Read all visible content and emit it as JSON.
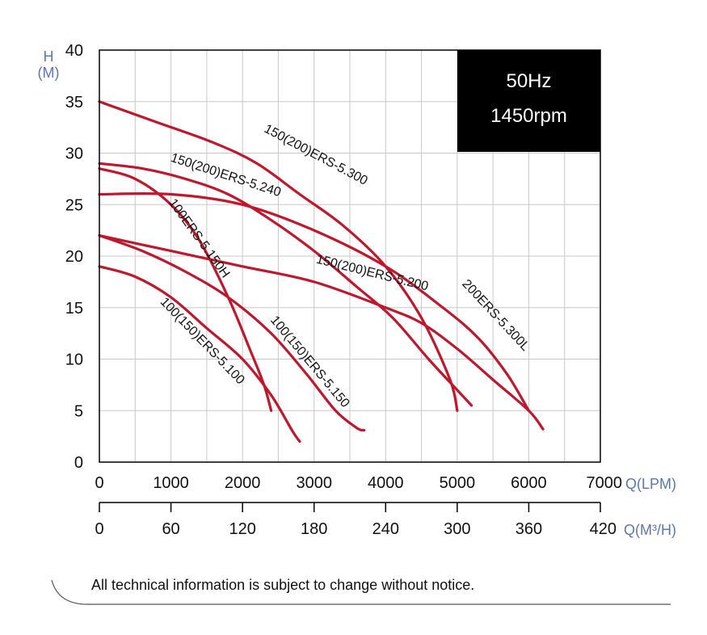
{
  "chart_data": {
    "type": "line",
    "y_axis": {
      "label": "H",
      "unit": "(M)",
      "min": 0,
      "max": 40,
      "ticks": [
        "0",
        "5",
        "10",
        "15",
        "20",
        "25",
        "30",
        "35",
        "40"
      ]
    },
    "x_axis": {
      "label": "Q(LPM)",
      "min": 0,
      "max": 7000,
      "ticks": [
        "0",
        "1000",
        "2000",
        "3000",
        "4000",
        "5000",
        "6000",
        "7000"
      ]
    },
    "x_axis2": {
      "label": "Q(M³/H)",
      "min": 0,
      "max": 420,
      "ticks": [
        "0",
        "60",
        "120",
        "180",
        "240",
        "300",
        "360",
        "420"
      ]
    },
    "grid": true,
    "badge": {
      "line1": "50Hz",
      "line2": "1450rpm",
      "position": "top-right"
    },
    "curve_color": "#c0172c",
    "series": [
      {
        "name": "150(200)ERS-5.300",
        "label_pos": [
          3000,
          29.5
        ],
        "label_angle": 28,
        "points": [
          [
            0,
            35
          ],
          [
            800,
            33
          ],
          [
            1600,
            31
          ],
          [
            2200,
            29
          ],
          [
            2800,
            26
          ],
          [
            3400,
            23
          ],
          [
            4000,
            19
          ],
          [
            4500,
            14
          ],
          [
            4900,
            8
          ],
          [
            5000,
            5
          ]
        ]
      },
      {
        "name": "150(200)ERS-5.240",
        "label_pos": [
          1750,
          27.5
        ],
        "label_angle": 18,
        "points": [
          [
            0,
            29
          ],
          [
            600,
            28.5
          ],
          [
            1200,
            27.5
          ],
          [
            1800,
            26
          ],
          [
            2400,
            23.5
          ],
          [
            3000,
            20.5
          ],
          [
            3600,
            17
          ],
          [
            4100,
            14
          ],
          [
            4600,
            10
          ],
          [
            5000,
            7
          ],
          [
            5200,
            5.5
          ]
        ]
      },
      {
        "name": "100ERS-5.150H",
        "label_pos": [
          1350,
          21.5
        ],
        "label_angle": 54,
        "points": [
          [
            0,
            28.5
          ],
          [
            500,
            27.5
          ],
          [
            1000,
            25
          ],
          [
            1400,
            21.5
          ],
          [
            1800,
            16
          ],
          [
            2100,
            11
          ],
          [
            2300,
            7.5
          ],
          [
            2400,
            5
          ]
        ]
      },
      {
        "name": "150(200)ERS-5.200",
        "label_pos": [
          3800,
          18
        ],
        "label_angle": 14,
        "points": [
          [
            0,
            22
          ],
          [
            1000,
            20.5
          ],
          [
            2000,
            19
          ],
          [
            3000,
            17.5
          ],
          [
            4000,
            15
          ],
          [
            4500,
            13.5
          ],
          [
            5000,
            11
          ],
          [
            5500,
            8
          ],
          [
            6000,
            5
          ],
          [
            6200,
            3.2
          ]
        ]
      },
      {
        "name": "200ERS-5.300L",
        "label_pos": [
          5500,
          14
        ],
        "label_angle": 47,
        "points": [
          [
            0,
            26
          ],
          [
            1000,
            26
          ],
          [
            2000,
            25
          ],
          [
            3000,
            22.5
          ],
          [
            4000,
            19
          ],
          [
            4800,
            15
          ],
          [
            5300,
            12
          ],
          [
            5700,
            8.5
          ],
          [
            6000,
            5
          ]
        ]
      },
      {
        "name": "100(150)ERS-5.150",
        "label_pos": [
          2900,
          9.5
        ],
        "label_angle": 50,
        "points": [
          [
            0,
            22
          ],
          [
            600,
            20.5
          ],
          [
            1200,
            18.5
          ],
          [
            1800,
            16
          ],
          [
            2400,
            12.5
          ],
          [
            2900,
            8.5
          ],
          [
            3300,
            5
          ],
          [
            3600,
            3.3
          ],
          [
            3700,
            3.1
          ]
        ]
      },
      {
        "name": "100(150)ERS-5.100",
        "label_pos": [
          1400,
          11.5
        ],
        "label_angle": 46,
        "points": [
          [
            0,
            19
          ],
          [
            500,
            18
          ],
          [
            1000,
            16
          ],
          [
            1500,
            13
          ],
          [
            2000,
            10
          ],
          [
            2400,
            6.5
          ],
          [
            2700,
            3
          ],
          [
            2800,
            2
          ]
        ]
      }
    ]
  },
  "footer": {
    "note": "All technical information is subject to change without notice."
  }
}
